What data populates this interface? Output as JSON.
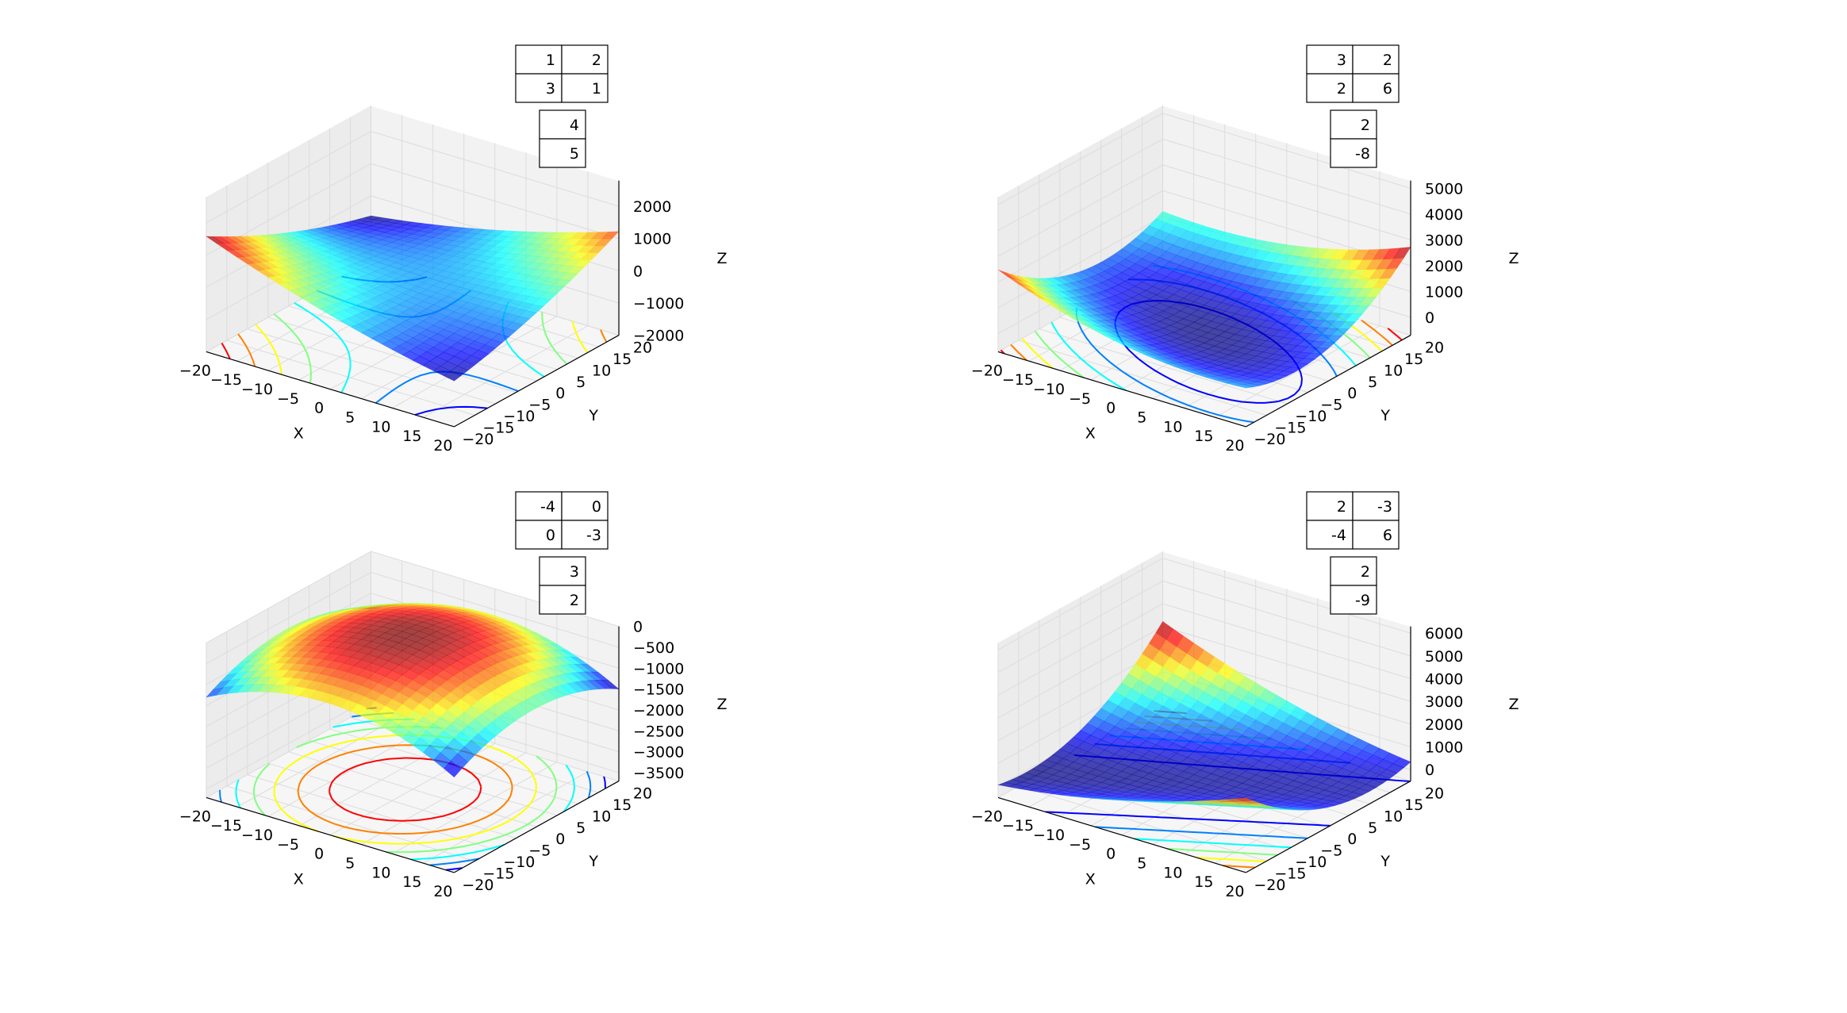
{
  "chart_data": [
    {
      "type": "surface",
      "matrix_A": [
        [
          1,
          2
        ],
        [
          3,
          1
        ]
      ],
      "vector_b": [
        4,
        5
      ],
      "xlabel": "X",
      "ylabel": "Y",
      "zlabel": "Z",
      "xlim": [
        -20,
        20
      ],
      "ylim": [
        -20,
        20
      ],
      "zlim": [
        -2000,
        2800
      ],
      "x_ticks": [
        "−20",
        "−15",
        "−10",
        "−5",
        "0",
        "5",
        "10",
        "15",
        "20"
      ],
      "y_ticks": [
        "−20",
        "−15",
        "−10",
        "−5",
        "0",
        "5",
        "10",
        "15",
        "20"
      ],
      "z_ticks": [
        "2000",
        "1000",
        "0",
        "−1000",
        "−2000"
      ],
      "z_tick_values": [
        2000,
        1000,
        0,
        -1000,
        -2000
      ],
      "grid": true,
      "colormap": "jet"
    },
    {
      "type": "surface",
      "matrix_A": [
        [
          3,
          2
        ],
        [
          2,
          6
        ]
      ],
      "vector_b": [
        2,
        -8
      ],
      "xlabel": "X",
      "ylabel": "Y",
      "zlabel": "Z",
      "xlim": [
        -20,
        20
      ],
      "ylim": [
        -20,
        20
      ],
      "zlim": [
        -700,
        5300
      ],
      "x_ticks": [
        "−20",
        "−15",
        "−10",
        "−5",
        "0",
        "5",
        "10",
        "15",
        "20"
      ],
      "y_ticks": [
        "−20",
        "−15",
        "−10",
        "−5",
        "0",
        "5",
        "10",
        "15",
        "20"
      ],
      "z_ticks": [
        "5000",
        "4000",
        "3000",
        "2000",
        "1000",
        "0"
      ],
      "z_tick_values": [
        5000,
        4000,
        3000,
        2000,
        1000,
        0
      ],
      "grid": true,
      "colormap": "jet"
    },
    {
      "type": "surface",
      "matrix_A": [
        [
          -4,
          0
        ],
        [
          0,
          -3
        ]
      ],
      "vector_b": [
        3,
        2
      ],
      "xlabel": "X",
      "ylabel": "Y",
      "zlabel": "Z",
      "xlim": [
        -20,
        20
      ],
      "ylim": [
        -20,
        20
      ],
      "zlim": [
        -3700,
        0
      ],
      "x_ticks": [
        "−20",
        "−15",
        "−10",
        "−5",
        "0",
        "5",
        "10",
        "15",
        "20"
      ],
      "y_ticks": [
        "−20",
        "−15",
        "−10",
        "−5",
        "0",
        "5",
        "10",
        "15",
        "20"
      ],
      "z_ticks": [
        "0",
        "−500",
        "−1000",
        "−1500",
        "−2000",
        "−2500",
        "−3000",
        "−3500"
      ],
      "z_tick_values": [
        0,
        -500,
        -1000,
        -1500,
        -2000,
        -2500,
        -3000,
        -3500
      ],
      "grid": true,
      "colormap": "jet"
    },
    {
      "type": "surface",
      "matrix_A": [
        [
          2,
          -3
        ],
        [
          -4,
          6
        ]
      ],
      "vector_b": [
        2,
        -9
      ],
      "xlabel": "X",
      "ylabel": "Y",
      "zlabel": "Z",
      "xlim": [
        -20,
        20
      ],
      "ylim": [
        -20,
        20
      ],
      "zlim": [
        -500,
        6300
      ],
      "x_ticks": [
        "−20",
        "−15",
        "−10",
        "−5",
        "0",
        "5",
        "10",
        "15",
        "20"
      ],
      "y_ticks": [
        "−20",
        "−15",
        "−10",
        "−5",
        "0",
        "5",
        "10",
        "15",
        "20"
      ],
      "z_ticks": [
        "6000",
        "5000",
        "4000",
        "3000",
        "2000",
        "1000",
        "0"
      ],
      "z_tick_values": [
        6000,
        5000,
        4000,
        3000,
        2000,
        1000,
        0
      ],
      "grid": true,
      "colormap": "jet"
    }
  ]
}
